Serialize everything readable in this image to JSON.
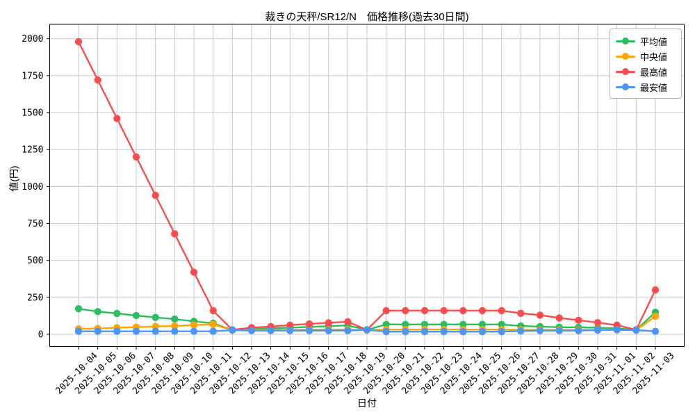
{
  "chart_data": {
    "type": "line",
    "title": "裁きの天秤/SR12/N　価格推移(過去30日間)",
    "xlabel": "日付",
    "ylabel": "値(円)",
    "grid": true,
    "legend_position": "upper right",
    "ylim": [
      -86,
      2097
    ],
    "yticks": [
      0,
      250,
      500,
      750,
      1000,
      1250,
      1500,
      1750,
      2000
    ],
    "x": [
      "2025-10-04",
      "2025-10-05",
      "2025-10-06",
      "2025-10-07",
      "2025-10-08",
      "2025-10-09",
      "2025-10-10",
      "2025-10-11",
      "2025-10-12",
      "2025-10-13",
      "2025-10-14",
      "2025-10-15",
      "2025-10-16",
      "2025-10-17",
      "2025-10-18",
      "2025-10-19",
      "2025-10-20",
      "2025-10-21",
      "2025-10-22",
      "2025-10-23",
      "2025-10-24",
      "2025-10-25",
      "2025-10-26",
      "2025-10-27",
      "2025-10-28",
      "2025-10-29",
      "2025-10-30",
      "2025-10-31",
      "2025-11-01",
      "2025-11-02",
      "2025-11-03"
    ],
    "series": [
      {
        "name": "平均値",
        "color": "#2dbe60",
        "values": [
          173,
          154,
          141,
          127,
          114,
          103,
          88,
          75,
          28,
          35,
          40,
          45,
          50,
          55,
          60,
          30,
          67,
          67,
          67,
          67,
          67,
          67,
          67,
          56,
          52,
          48,
          47,
          44,
          40,
          30,
          149
        ]
      },
      {
        "name": "中央値",
        "color": "#ffa502",
        "values": [
          36,
          39,
          44,
          48,
          53,
          56,
          63,
          67,
          28,
          30,
          30,
          30,
          32,
          32,
          32,
          28,
          32,
          32,
          32,
          32,
          32,
          32,
          32,
          30,
          30,
          30,
          30,
          30,
          30,
          28,
          122
        ]
      },
      {
        "name": "最高値",
        "color": "#fa4d4d",
        "values": [
          1980,
          1720,
          1460,
          1200,
          940,
          680,
          420,
          160,
          30,
          45,
          52,
          62,
          70,
          78,
          85,
          30,
          160,
          160,
          160,
          160,
          160,
          160,
          160,
          142,
          130,
          111,
          95,
          79,
          62,
          30,
          300
        ]
      },
      {
        "name": "最安値",
        "color": "#4b96f8",
        "values": [
          20,
          20,
          20,
          20,
          20,
          20,
          20,
          20,
          28,
          25,
          25,
          25,
          25,
          25,
          25,
          30,
          18,
          18,
          18,
          18,
          18,
          18,
          18,
          22,
          25,
          25,
          25,
          28,
          30,
          28,
          20
        ]
      }
    ]
  }
}
